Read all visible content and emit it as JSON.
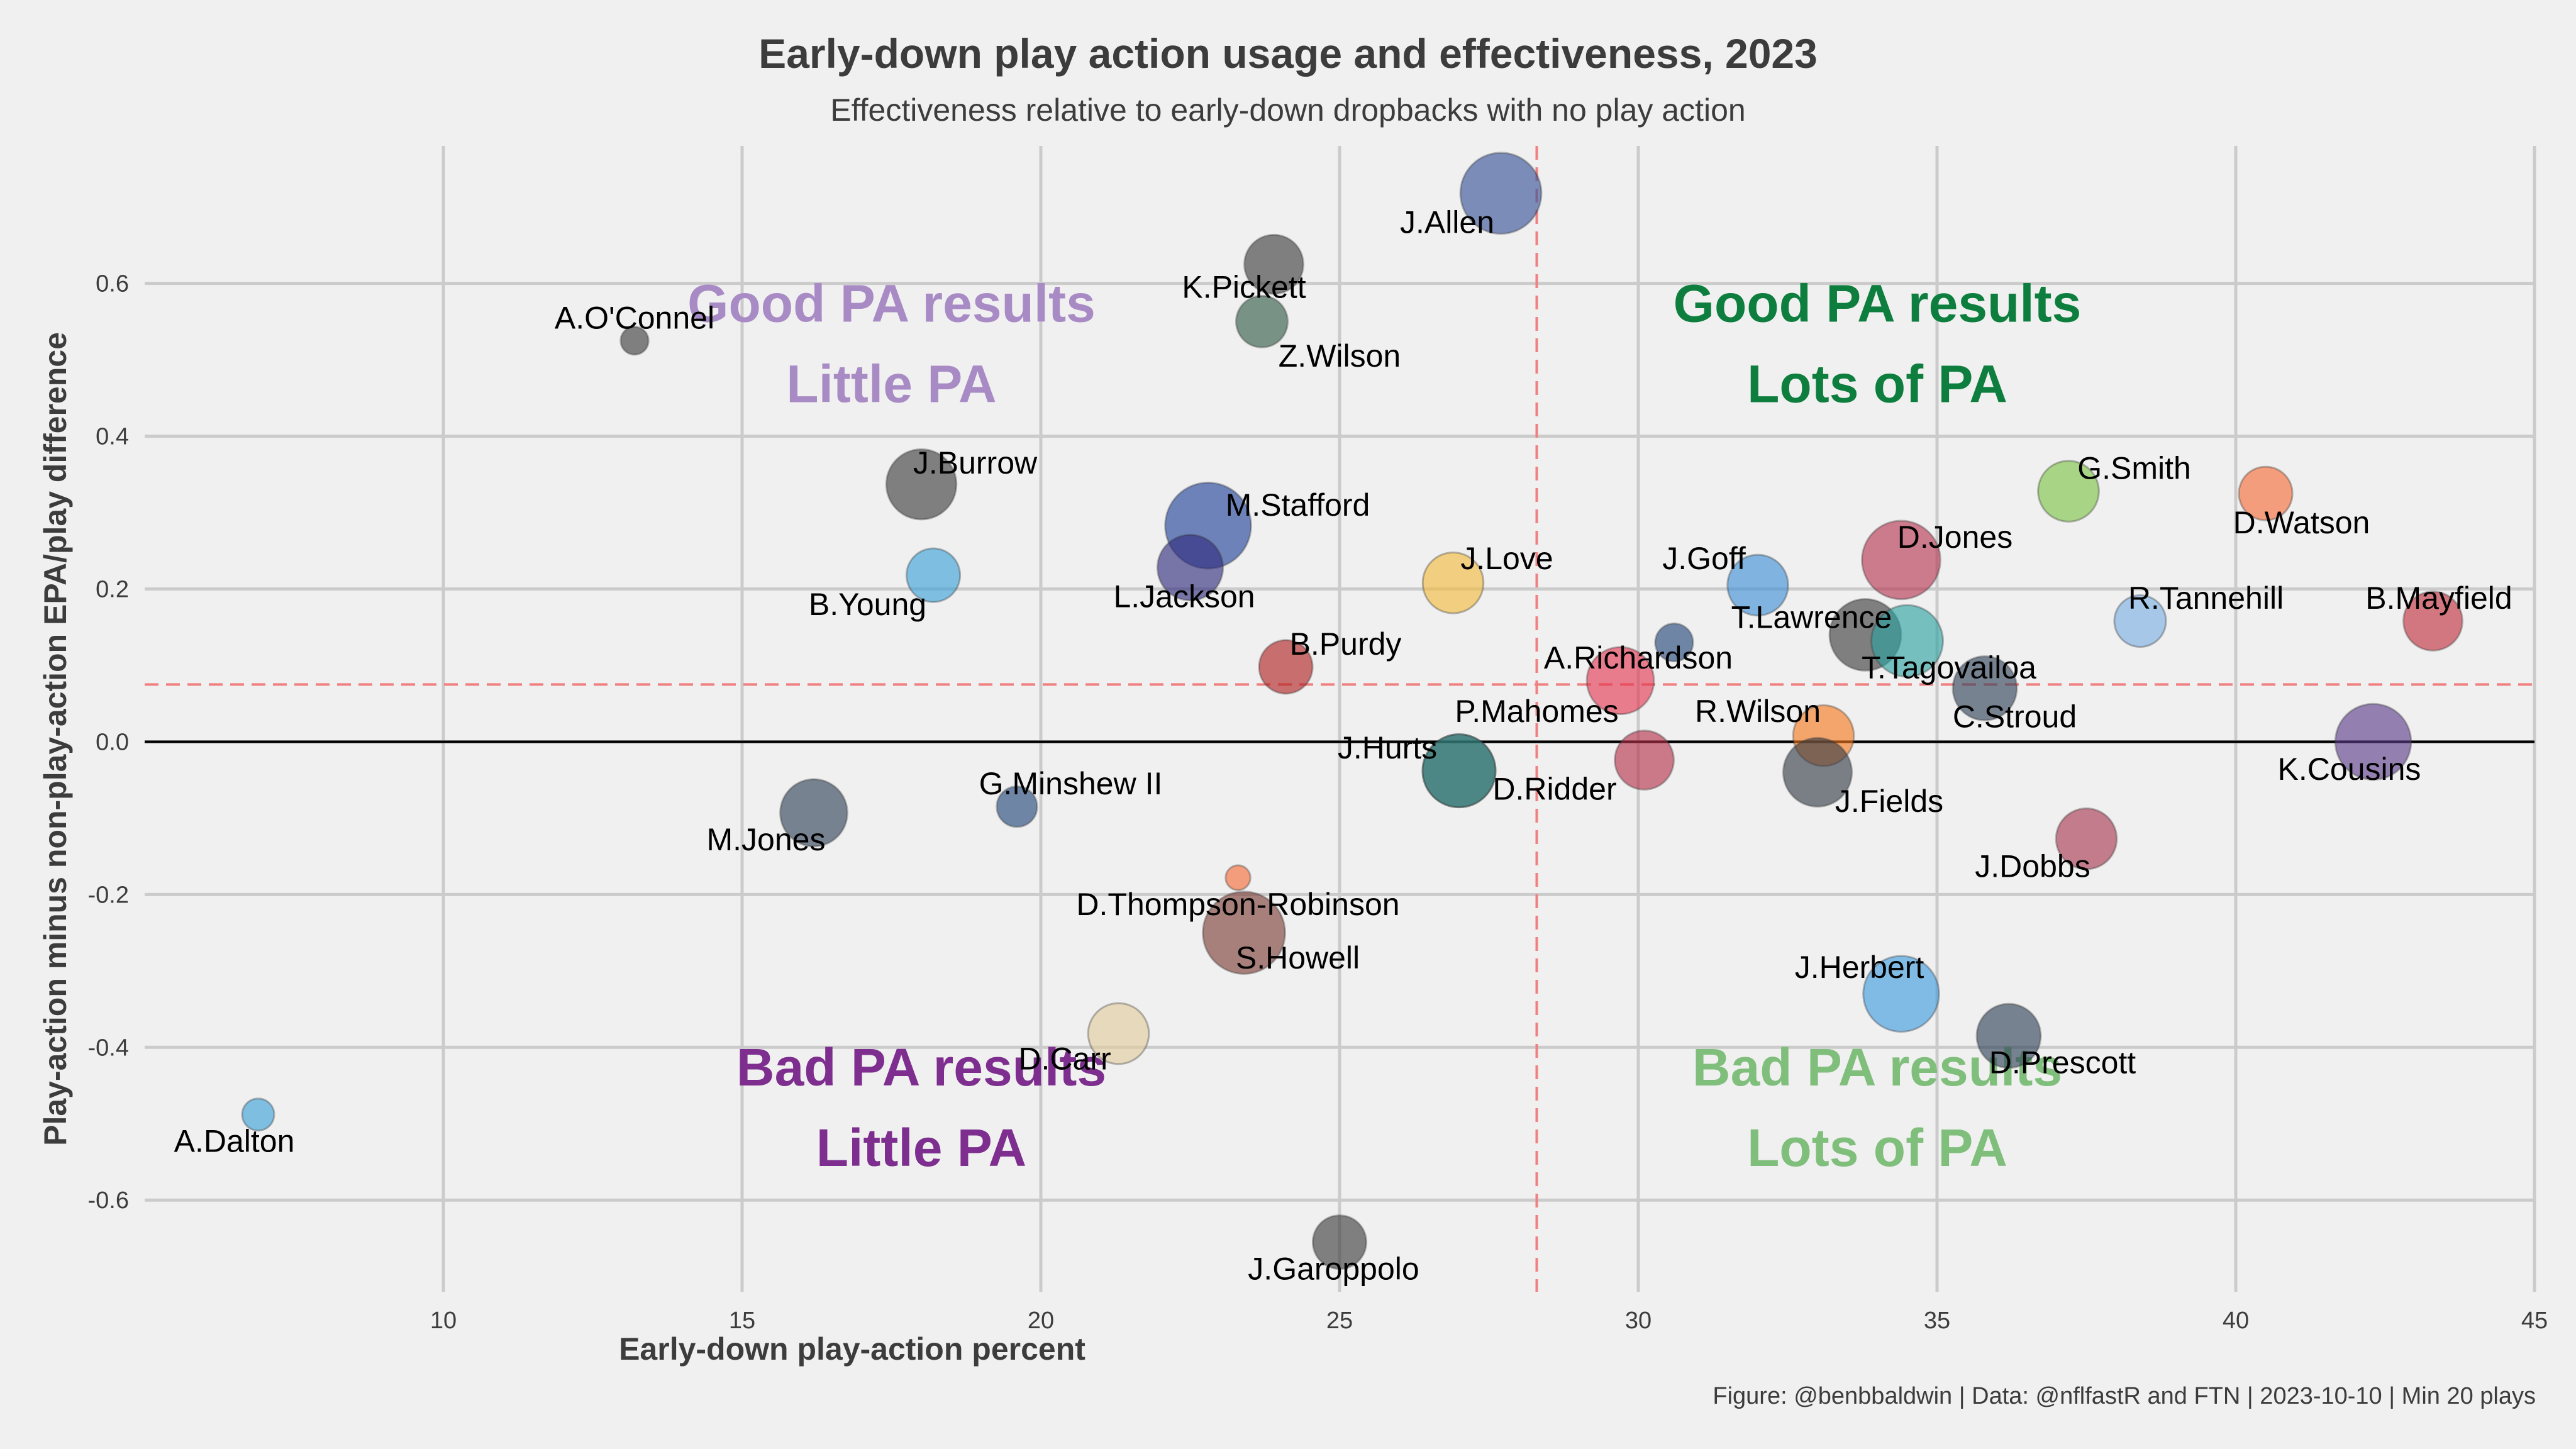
{
  "chart_data": {
    "type": "scatter",
    "title": "Early-down play action usage and effectiveness, 2023",
    "subtitle": "Effectiveness relative to early-down dropbacks with no play action",
    "xlabel": "Early-down play-action percent",
    "ylabel": "Play-action minus non-play-action EPA/play difference",
    "caption": "Figure: @benbbaldwin | Data: @nflfastR and FTN | 2023-10-10 | Min 20 plays",
    "xlim": [
      5,
      45
    ],
    "ylim": [
      -0.72,
      0.78
    ],
    "x_ticks": [
      10,
      15,
      20,
      25,
      30,
      35,
      40,
      45
    ],
    "y_ticks": [
      -0.6,
      -0.4,
      -0.2,
      0.0,
      0.2,
      0.4,
      0.6
    ],
    "y_tick_labels": [
      "-0.6",
      "-0.4",
      "-0.2",
      "0.0",
      "0.2",
      "0.4",
      "0.6"
    ],
    "grid": true,
    "reference_lines": {
      "x_mean": 28.3,
      "y_mean": 0.075,
      "y_zero": 0
    },
    "quadrant_labels": [
      {
        "lines": [
          "Good PA results",
          "Little PA"
        ],
        "x": 17.5,
        "y": 0.55,
        "color": "#a88bc4"
      },
      {
        "lines": [
          "Good PA results",
          "Lots of PA"
        ],
        "x": 34.0,
        "y": 0.55,
        "color": "#0d7e3e"
      },
      {
        "lines": [
          "Bad PA results",
          "Little PA"
        ],
        "x": 18.0,
        "y": -0.45,
        "color": "#7d2e8e"
      },
      {
        "lines": [
          "Bad PA results",
          "Lots of PA"
        ],
        "x": 34.0,
        "y": -0.45,
        "color": "#7fbf7b"
      }
    ],
    "points": [
      {
        "name": "A.O'Connell",
        "label": "A.O'Connel",
        "x": 13.2,
        "y": 0.525,
        "size": 38,
        "color": "#3a3a3a",
        "lx": 13.2,
        "ly": 0.555
      },
      {
        "name": "K.Pickett",
        "x": 23.9,
        "y": 0.625,
        "size": 170,
        "color": "#3a3a3a",
        "lx": 23.4,
        "ly": 0.595
      },
      {
        "name": "Z.Wilson",
        "x": 23.7,
        "y": 0.55,
        "size": 130,
        "color": "#2f5a44",
        "lx": 25.0,
        "ly": 0.505
      },
      {
        "name": "J.Allen",
        "x": 27.7,
        "y": 0.718,
        "size": 320,
        "color": "#334f96",
        "lx": 26.8,
        "ly": 0.68
      },
      {
        "name": "J.Burrow",
        "x": 18.0,
        "y": 0.337,
        "size": 240,
        "color": "#3a3a3a",
        "lx": 18.9,
        "ly": 0.365
      },
      {
        "name": "M.Stafford",
        "x": 22.8,
        "y": 0.283,
        "size": 360,
        "color": "#1f3f9a",
        "lx": 24.3,
        "ly": 0.31
      },
      {
        "name": "B.Young",
        "x": 18.2,
        "y": 0.218,
        "size": 140,
        "color": "#39a0d8",
        "lx": 17.1,
        "ly": 0.18
      },
      {
        "name": "L.Jackson",
        "x": 22.5,
        "y": 0.228,
        "size": 210,
        "color": "#2d2a7a",
        "lx": 22.4,
        "ly": 0.19
      },
      {
        "name": "J.Love",
        "x": 26.9,
        "y": 0.208,
        "size": 180,
        "color": "#f4bc3c",
        "lx": 27.8,
        "ly": 0.24
      },
      {
        "name": "B.Purdy",
        "x": 24.1,
        "y": 0.098,
        "size": 140,
        "color": "#b01f1f",
        "lx": 25.1,
        "ly": 0.128
      },
      {
        "name": "J.Goff",
        "x": 32.0,
        "y": 0.205,
        "size": 180,
        "color": "#3b8ed6",
        "lx": 31.1,
        "ly": 0.24
      },
      {
        "name": "D.Jones",
        "x": 34.4,
        "y": 0.238,
        "size": 300,
        "color": "#b7334f",
        "lx": 35.3,
        "ly": 0.268
      },
      {
        "name": "G.Smith",
        "x": 37.2,
        "y": 0.328,
        "size": 180,
        "color": "#7cc444",
        "lx": 38.3,
        "ly": 0.358
      },
      {
        "name": "D.Watson",
        "x": 40.5,
        "y": 0.325,
        "size": 140,
        "color": "#f76a36",
        "lx": 41.1,
        "ly": 0.287
      },
      {
        "name": "R.Tannehill",
        "x": 38.4,
        "y": 0.158,
        "size": 130,
        "color": "#79aee3",
        "lx": 39.5,
        "ly": 0.188
      },
      {
        "name": "B.Mayfield",
        "x": 43.3,
        "y": 0.158,
        "size": 170,
        "color": "#c02d3a",
        "lx": 43.4,
        "ly": 0.188
      },
      {
        "name": "T.Lawrence",
        "x": 30.6,
        "y": 0.13,
        "size": 70,
        "color": "#214478",
        "lx": 32.9,
        "ly": 0.163
      },
      {
        "name": "x-dark-lawrence",
        "label": "",
        "x": 33.8,
        "y": 0.14,
        "size": 250,
        "color": "#3a3a3a",
        "lx": 33.8,
        "ly": 0.14
      },
      {
        "name": "T.Tagovailoa",
        "x": 34.5,
        "y": 0.132,
        "size": 250,
        "color": "#2aa1a1",
        "lx": 35.2,
        "ly": 0.097
      },
      {
        "name": "C.Stroud",
        "x": 35.8,
        "y": 0.07,
        "size": 200,
        "color": "#2d3f55",
        "lx": 36.3,
        "ly": 0.033
      },
      {
        "name": "A.Richardson",
        "x": 29.7,
        "y": 0.08,
        "size": 220,
        "color": "#e3344f",
        "lx": 30.0,
        "ly": 0.11
      },
      {
        "name": "P.Mahomes",
        "x": 27.0,
        "y": -0.038,
        "size": 260,
        "color": "#317673",
        "lx": 28.3,
        "ly": 0.04
      },
      {
        "name": "R.Wilson",
        "x": 33.1,
        "y": 0.008,
        "size": 180,
        "color": "#f6771c",
        "lx": 32.0,
        "ly": 0.04
      },
      {
        "name": "J.Hurts",
        "x": 27.0,
        "y": -0.038,
        "size": 260,
        "color": "#317673",
        "lx": 25.8,
        "ly": -0.008
      },
      {
        "name": "D.Ridder",
        "x": 30.1,
        "y": -0.024,
        "size": 170,
        "color": "#b43048",
        "lx": 28.6,
        "ly": -0.062
      },
      {
        "name": "J.Fields",
        "x": 33.0,
        "y": -0.04,
        "size": 230,
        "color": "#323a45",
        "lx": 34.2,
        "ly": -0.078
      },
      {
        "name": "K.Cousins",
        "x": 42.3,
        "y": 0.0,
        "size": 280,
        "color": "#5a3b8a",
        "lx": 41.9,
        "ly": -0.036
      },
      {
        "name": "M.Jones",
        "x": 16.2,
        "y": -0.093,
        "size": 220,
        "color": "#2d3f55",
        "lx": 15.4,
        "ly": -0.128
      },
      {
        "name": "G.Minshew II",
        "x": 19.6,
        "y": -0.085,
        "size": 80,
        "color": "#214478",
        "lx": 20.5,
        "ly": -0.055
      },
      {
        "name": "J.Dobbs",
        "x": 37.5,
        "y": -0.127,
        "size": 180,
        "color": "#a6364e",
        "lx": 36.6,
        "ly": -0.163
      },
      {
        "name": "D.Thompson-Robinson",
        "x": 23.3,
        "y": -0.178,
        "size": 30,
        "color": "#f76a36",
        "lx": 23.3,
        "ly": -0.213
      },
      {
        "name": "S.Howell",
        "x": 23.4,
        "y": -0.25,
        "size": 330,
        "color": "#7b3b34",
        "lx": 24.3,
        "ly": -0.283
      },
      {
        "name": "J.Herbert",
        "x": 34.4,
        "y": -0.33,
        "size": 280,
        "color": "#3b9be0",
        "lx": 33.7,
        "ly": -0.295
      },
      {
        "name": "D.Prescott",
        "x": 36.2,
        "y": -0.385,
        "size": 200,
        "color": "#2d3f55",
        "lx": 37.1,
        "ly": -0.42
      },
      {
        "name": "D.Carr",
        "x": 21.3,
        "y": -0.382,
        "size": 180,
        "color": "#e2cc9c",
        "lx": 20.4,
        "ly": -0.415
      },
      {
        "name": "A.Dalton",
        "x": 6.9,
        "y": -0.488,
        "size": 50,
        "color": "#39a0d8",
        "lx": 6.5,
        "ly": -0.523
      },
      {
        "name": "J.Garoppolo",
        "x": 25.0,
        "y": -0.655,
        "size": 140,
        "color": "#3a3a3a",
        "lx": 24.9,
        "ly": -0.69
      }
    ]
  }
}
